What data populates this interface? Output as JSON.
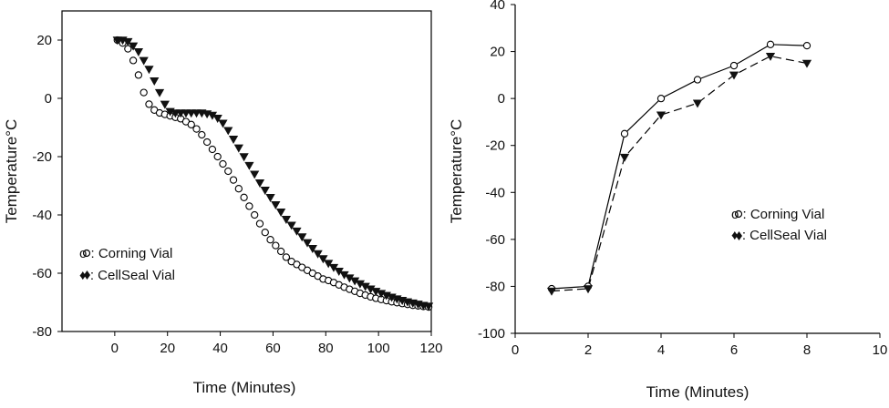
{
  "chart_data": [
    {
      "type": "scatter",
      "xlabel": "Time (Minutes)",
      "ylabel": "Temperature°C",
      "xlim": [
        -20,
        120
      ],
      "ylim": [
        -80,
        30
      ],
      "xticks": [
        0,
        20,
        40,
        60,
        80,
        100,
        120
      ],
      "yticks": [
        20,
        0,
        -20,
        -40,
        -60,
        -80
      ],
      "grid": false,
      "legend_position": "bottom-left",
      "legend": [
        "o : Corning Vial",
        "♦ : CellSeal Vial"
      ],
      "series": [
        {
          "name": "o : Corning Vial",
          "marker": "open-circle",
          "x": [
            1,
            3,
            5,
            7,
            9,
            11,
            13,
            15,
            17,
            19,
            21,
            23,
            25,
            27,
            29,
            31,
            33,
            35,
            37,
            39,
            41,
            43,
            45,
            47,
            49,
            51,
            53,
            55,
            57,
            59,
            61,
            63,
            65,
            67,
            69,
            71,
            73,
            75,
            77,
            79,
            81,
            83,
            85,
            87,
            89,
            91,
            93,
            95,
            97,
            99,
            101,
            103,
            105,
            107,
            109,
            111,
            113,
            115,
            117,
            119
          ],
          "y": [
            20,
            19,
            17,
            13,
            8,
            2,
            -2,
            -4,
            -5,
            -5.5,
            -6,
            -6.5,
            -7,
            -8,
            -9,
            -10.5,
            -12.5,
            -15,
            -17.5,
            -20,
            -22.5,
            -25,
            -28,
            -31,
            -34,
            -37,
            -40,
            -43,
            -46,
            -48.5,
            -50.5,
            -52.5,
            -54.5,
            -56,
            -57,
            -58,
            -59,
            -60,
            -61,
            -62,
            -62.5,
            -63.2,
            -64,
            -64.8,
            -65.5,
            -66.2,
            -66.9,
            -67.5,
            -68.1,
            -68.6,
            -69,
            -69.4,
            -69.8,
            -70.1,
            -70.4,
            -70.7,
            -71,
            -71.2,
            -71.4,
            -71.6
          ]
        },
        {
          "name": "♦ : CellSeal Vial",
          "marker": "filled-triangle-down",
          "x": [
            1,
            3,
            5,
            7,
            9,
            11,
            13,
            15,
            17,
            19,
            21,
            23,
            25,
            27,
            29,
            31,
            33,
            35,
            37,
            39,
            41,
            43,
            45,
            47,
            49,
            51,
            53,
            55,
            57,
            59,
            61,
            63,
            65,
            67,
            69,
            71,
            73,
            75,
            77,
            79,
            81,
            83,
            85,
            87,
            89,
            91,
            93,
            95,
            97,
            99,
            101,
            103,
            105,
            107,
            109,
            111,
            113,
            115,
            117,
            119
          ],
          "y": [
            20,
            20,
            19.5,
            18,
            16,
            13,
            10,
            6,
            2,
            -2,
            -4.5,
            -5,
            -5,
            -5,
            -5,
            -5,
            -5,
            -5.3,
            -5.8,
            -6.8,
            -8.5,
            -11,
            -14,
            -17,
            -20,
            -23,
            -26,
            -29,
            -31.5,
            -34,
            -36.5,
            -39,
            -41.5,
            -43.5,
            -45.5,
            -47.5,
            -49.5,
            -51.5,
            -53.3,
            -55,
            -56.6,
            -58,
            -59.3,
            -60.5,
            -61.6,
            -62.6,
            -63.6,
            -64.5,
            -65.4,
            -66.2,
            -66.9,
            -67.6,
            -68.2,
            -68.8,
            -69.3,
            -69.8,
            -70.2,
            -70.6,
            -71,
            -71.3
          ]
        }
      ]
    },
    {
      "type": "line",
      "xlabel": "Time (Minutes)",
      "ylabel": "Temperature°C",
      "xlim": [
        0,
        10
      ],
      "ylim": [
        -100,
        40
      ],
      "xticks": [
        0,
        2,
        4,
        6,
        8,
        10
      ],
      "yticks": [
        40,
        20,
        0,
        -20,
        -40,
        -60,
        -80,
        -100
      ],
      "grid": false,
      "legend_position": "right-middle",
      "legend": [
        "o : Corning Vial",
        "♦ : CellSeal Vial"
      ],
      "series": [
        {
          "name": "o : Corning Vial",
          "marker": "open-circle",
          "line": "solid",
          "x": [
            1,
            2,
            3,
            4,
            5,
            6,
            7,
            8
          ],
          "y": [
            -81,
            -80,
            -15,
            0,
            8,
            14,
            23,
            22.5
          ]
        },
        {
          "name": "♦ : CellSeal Vial",
          "marker": "filled-triangle-down",
          "line": "dashed",
          "x": [
            1,
            2,
            3,
            4,
            5,
            6,
            7,
            8
          ],
          "y": [
            -82,
            -81,
            -25,
            -7,
            -2,
            10,
            18,
            15
          ]
        }
      ]
    }
  ]
}
